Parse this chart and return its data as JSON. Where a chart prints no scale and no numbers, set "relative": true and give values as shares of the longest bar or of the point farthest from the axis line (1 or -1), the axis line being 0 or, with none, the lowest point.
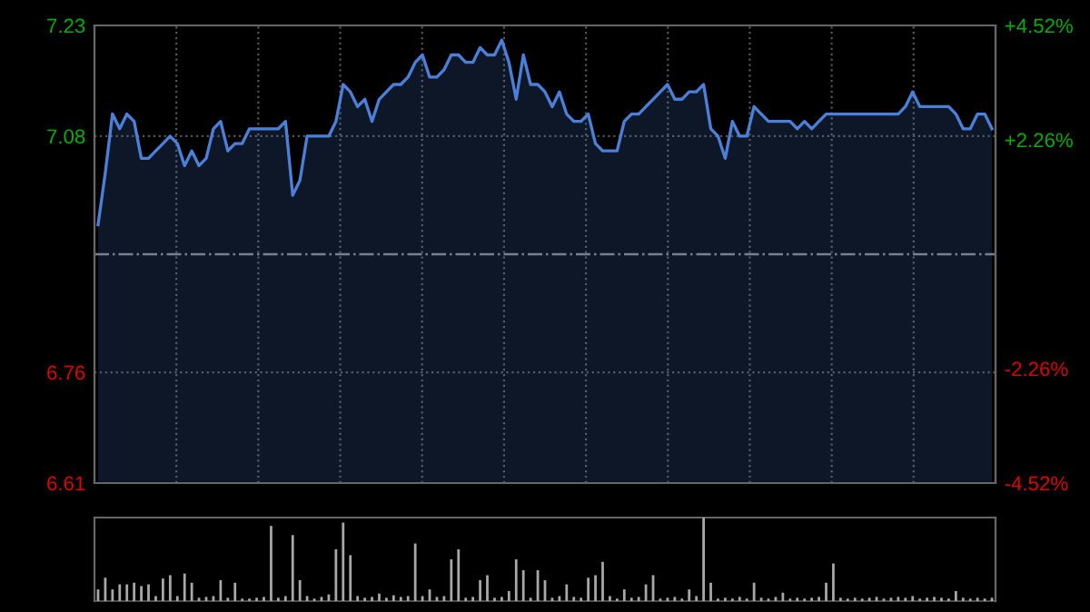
{
  "chart_data": [
    {
      "type": "area",
      "categories": [
        null,
        null,
        null,
        null,
        null,
        null,
        null,
        null,
        null,
        null,
        null,
        null,
        null,
        null,
        null,
        null,
        null,
        null,
        null,
        null,
        null,
        null,
        null,
        null,
        null,
        null,
        null,
        null,
        null,
        null,
        null,
        null,
        null,
        null,
        null,
        null,
        null,
        null,
        null,
        null,
        null,
        null,
        null,
        null,
        null,
        null,
        null,
        null,
        null,
        null,
        null,
        null,
        null,
        null,
        null,
        null,
        null,
        null,
        null,
        null,
        null,
        null,
        null,
        null,
        null,
        null,
        null,
        null,
        null,
        null,
        null,
        null,
        null,
        null,
        null,
        null,
        null,
        null,
        null,
        null,
        null,
        null,
        null,
        null,
        null,
        null,
        null,
        null,
        null,
        null,
        null,
        null,
        null,
        null,
        null,
        null,
        null,
        null,
        null,
        null,
        null,
        null,
        null,
        null,
        null,
        null,
        null,
        null,
        null,
        null,
        null,
        null,
        null,
        null,
        null,
        null,
        null,
        null,
        null,
        null,
        null,
        null,
        null,
        null,
        null
      ],
      "series": [
        {
          "color": "#4a80d8",
          "values": [
            6.96,
            7.03,
            7.11,
            7.09,
            7.11,
            7.1,
            7.05,
            7.05,
            7.06,
            7.07,
            7.08,
            7.07,
            7.04,
            7.06,
            7.04,
            7.05,
            7.09,
            7.1,
            7.06,
            7.07,
            7.07,
            7.09,
            7.09,
            7.09,
            7.09,
            7.09,
            7.1,
            7.0,
            7.02,
            7.08,
            7.08,
            7.08,
            7.08,
            7.1,
            7.15,
            7.14,
            7.12,
            7.13,
            7.1,
            7.13,
            7.14,
            7.15,
            7.15,
            7.16,
            7.18,
            7.19,
            7.16,
            7.16,
            7.17,
            7.19,
            7.19,
            7.18,
            7.18,
            7.2,
            7.19,
            7.19,
            7.21,
            7.18,
            7.13,
            7.19,
            7.15,
            7.15,
            7.14,
            7.12,
            7.14,
            7.11,
            7.1,
            7.1,
            7.11,
            7.07,
            7.06,
            7.06,
            7.06,
            7.1,
            7.11,
            7.11,
            7.12,
            7.13,
            7.14,
            7.15,
            7.13,
            7.13,
            7.14,
            7.14,
            7.15,
            7.09,
            7.08,
            7.05,
            7.1,
            7.08,
            7.08,
            7.12,
            7.11,
            7.1,
            7.1,
            7.1,
            7.1,
            7.09,
            7.1,
            7.09,
            7.1,
            7.11,
            7.11,
            7.11,
            7.11,
            7.11,
            7.11,
            7.11,
            7.11,
            7.11,
            7.11,
            7.11,
            7.12,
            7.14,
            7.12,
            7.12,
            7.12,
            7.12,
            7.12,
            7.11,
            7.09,
            7.09,
            7.11,
            7.11,
            7.09
          ]
        }
      ],
      "ylim": [
        6.61,
        7.23
      ],
      "yticks": [
        6.61,
        6.76,
        7.08,
        7.23
      ],
      "y2lim": [
        -4.52,
        4.52
      ],
      "y2ticks": [
        {
          "value": -4.52,
          "label": "-4.52%"
        },
        {
          "value": -2.26,
          "label": "-2.26%"
        },
        {
          "value": 2.26,
          "label": "+2.26%"
        },
        {
          "value": 4.52,
          "label": "+4.52%"
        }
      ],
      "ref_lines": [
        {
          "axis": "y",
          "value": 6.92,
          "color": "#808080",
          "line_style": "dashdot"
        }
      ],
      "grid": true,
      "legend": false
    },
    {
      "type": "bar",
      "relative": true,
      "color": "#a8a8a8",
      "categories": [
        null,
        null,
        null,
        null,
        null,
        null,
        null,
        null,
        null,
        null,
        null,
        null,
        null,
        null,
        null,
        null,
        null,
        null,
        null,
        null,
        null,
        null,
        null,
        null,
        null,
        null,
        null,
        null,
        null,
        null,
        null,
        null,
        null,
        null,
        null,
        null,
        null,
        null,
        null,
        null,
        null,
        null,
        null,
        null,
        null,
        null,
        null,
        null,
        null,
        null,
        null,
        null,
        null,
        null,
        null,
        null,
        null,
        null,
        null,
        null,
        null,
        null,
        null,
        null,
        null,
        null,
        null,
        null,
        null,
        null,
        null,
        null,
        null,
        null,
        null,
        null,
        null,
        null,
        null,
        null,
        null,
        null,
        null,
        null,
        null,
        null,
        null,
        null,
        null,
        null,
        null,
        null,
        null,
        null,
        null,
        null,
        null,
        null,
        null,
        null,
        null,
        null,
        null,
        null,
        null,
        null,
        null,
        null,
        null,
        null,
        null,
        null,
        null,
        null,
        null,
        null,
        null,
        null,
        null,
        null,
        null,
        null,
        null,
        null,
        null
      ],
      "values": [
        0.14,
        0.28,
        0.14,
        0.2,
        0.2,
        0.22,
        0.18,
        0.2,
        0.06,
        0.27,
        0.31,
        0.06,
        0.33,
        0.22,
        0.04,
        0.05,
        0.06,
        0.25,
        0.04,
        0.22,
        0.03,
        0.03,
        0.04,
        0.05,
        0.9,
        0.04,
        0.06,
        0.79,
        0.25,
        0.06,
        0.03,
        0.05,
        0.08,
        0.62,
        0.94,
        0.55,
        0.06,
        0.04,
        0.05,
        0.09,
        0.04,
        0.07,
        0.05,
        0.06,
        0.69,
        0.06,
        0.14,
        0.05,
        0.06,
        0.5,
        0.62,
        0.04,
        0.05,
        0.25,
        0.31,
        0.04,
        0.05,
        0.12,
        0.5,
        0.37,
        0.04,
        0.37,
        0.25,
        0.04,
        0.06,
        0.2,
        0.05,
        0.04,
        0.28,
        0.31,
        0.47,
        0.06,
        0.03,
        0.14,
        0.04,
        0.05,
        0.2,
        0.31,
        0.03,
        0.04,
        0.05,
        0.03,
        0.14,
        0.06,
        1,
        0.22,
        0.03,
        0.04,
        0.03,
        0.05,
        0.03,
        0.22,
        0.04,
        0.03,
        0.05,
        0.1,
        0.03,
        0.04,
        0.03,
        0.04,
        0.05,
        0.22,
        0.45,
        0.04,
        0.03,
        0.04,
        0.03,
        0.04,
        0.05,
        0.03,
        0.04,
        0.05,
        0.04,
        0.06,
        0.03,
        0.04,
        0.05,
        0.04,
        0.03,
        0.12,
        0.04,
        0.03,
        0.04,
        0.03,
        0.04
      ],
      "grid": false,
      "legend": false
    }
  ]
}
